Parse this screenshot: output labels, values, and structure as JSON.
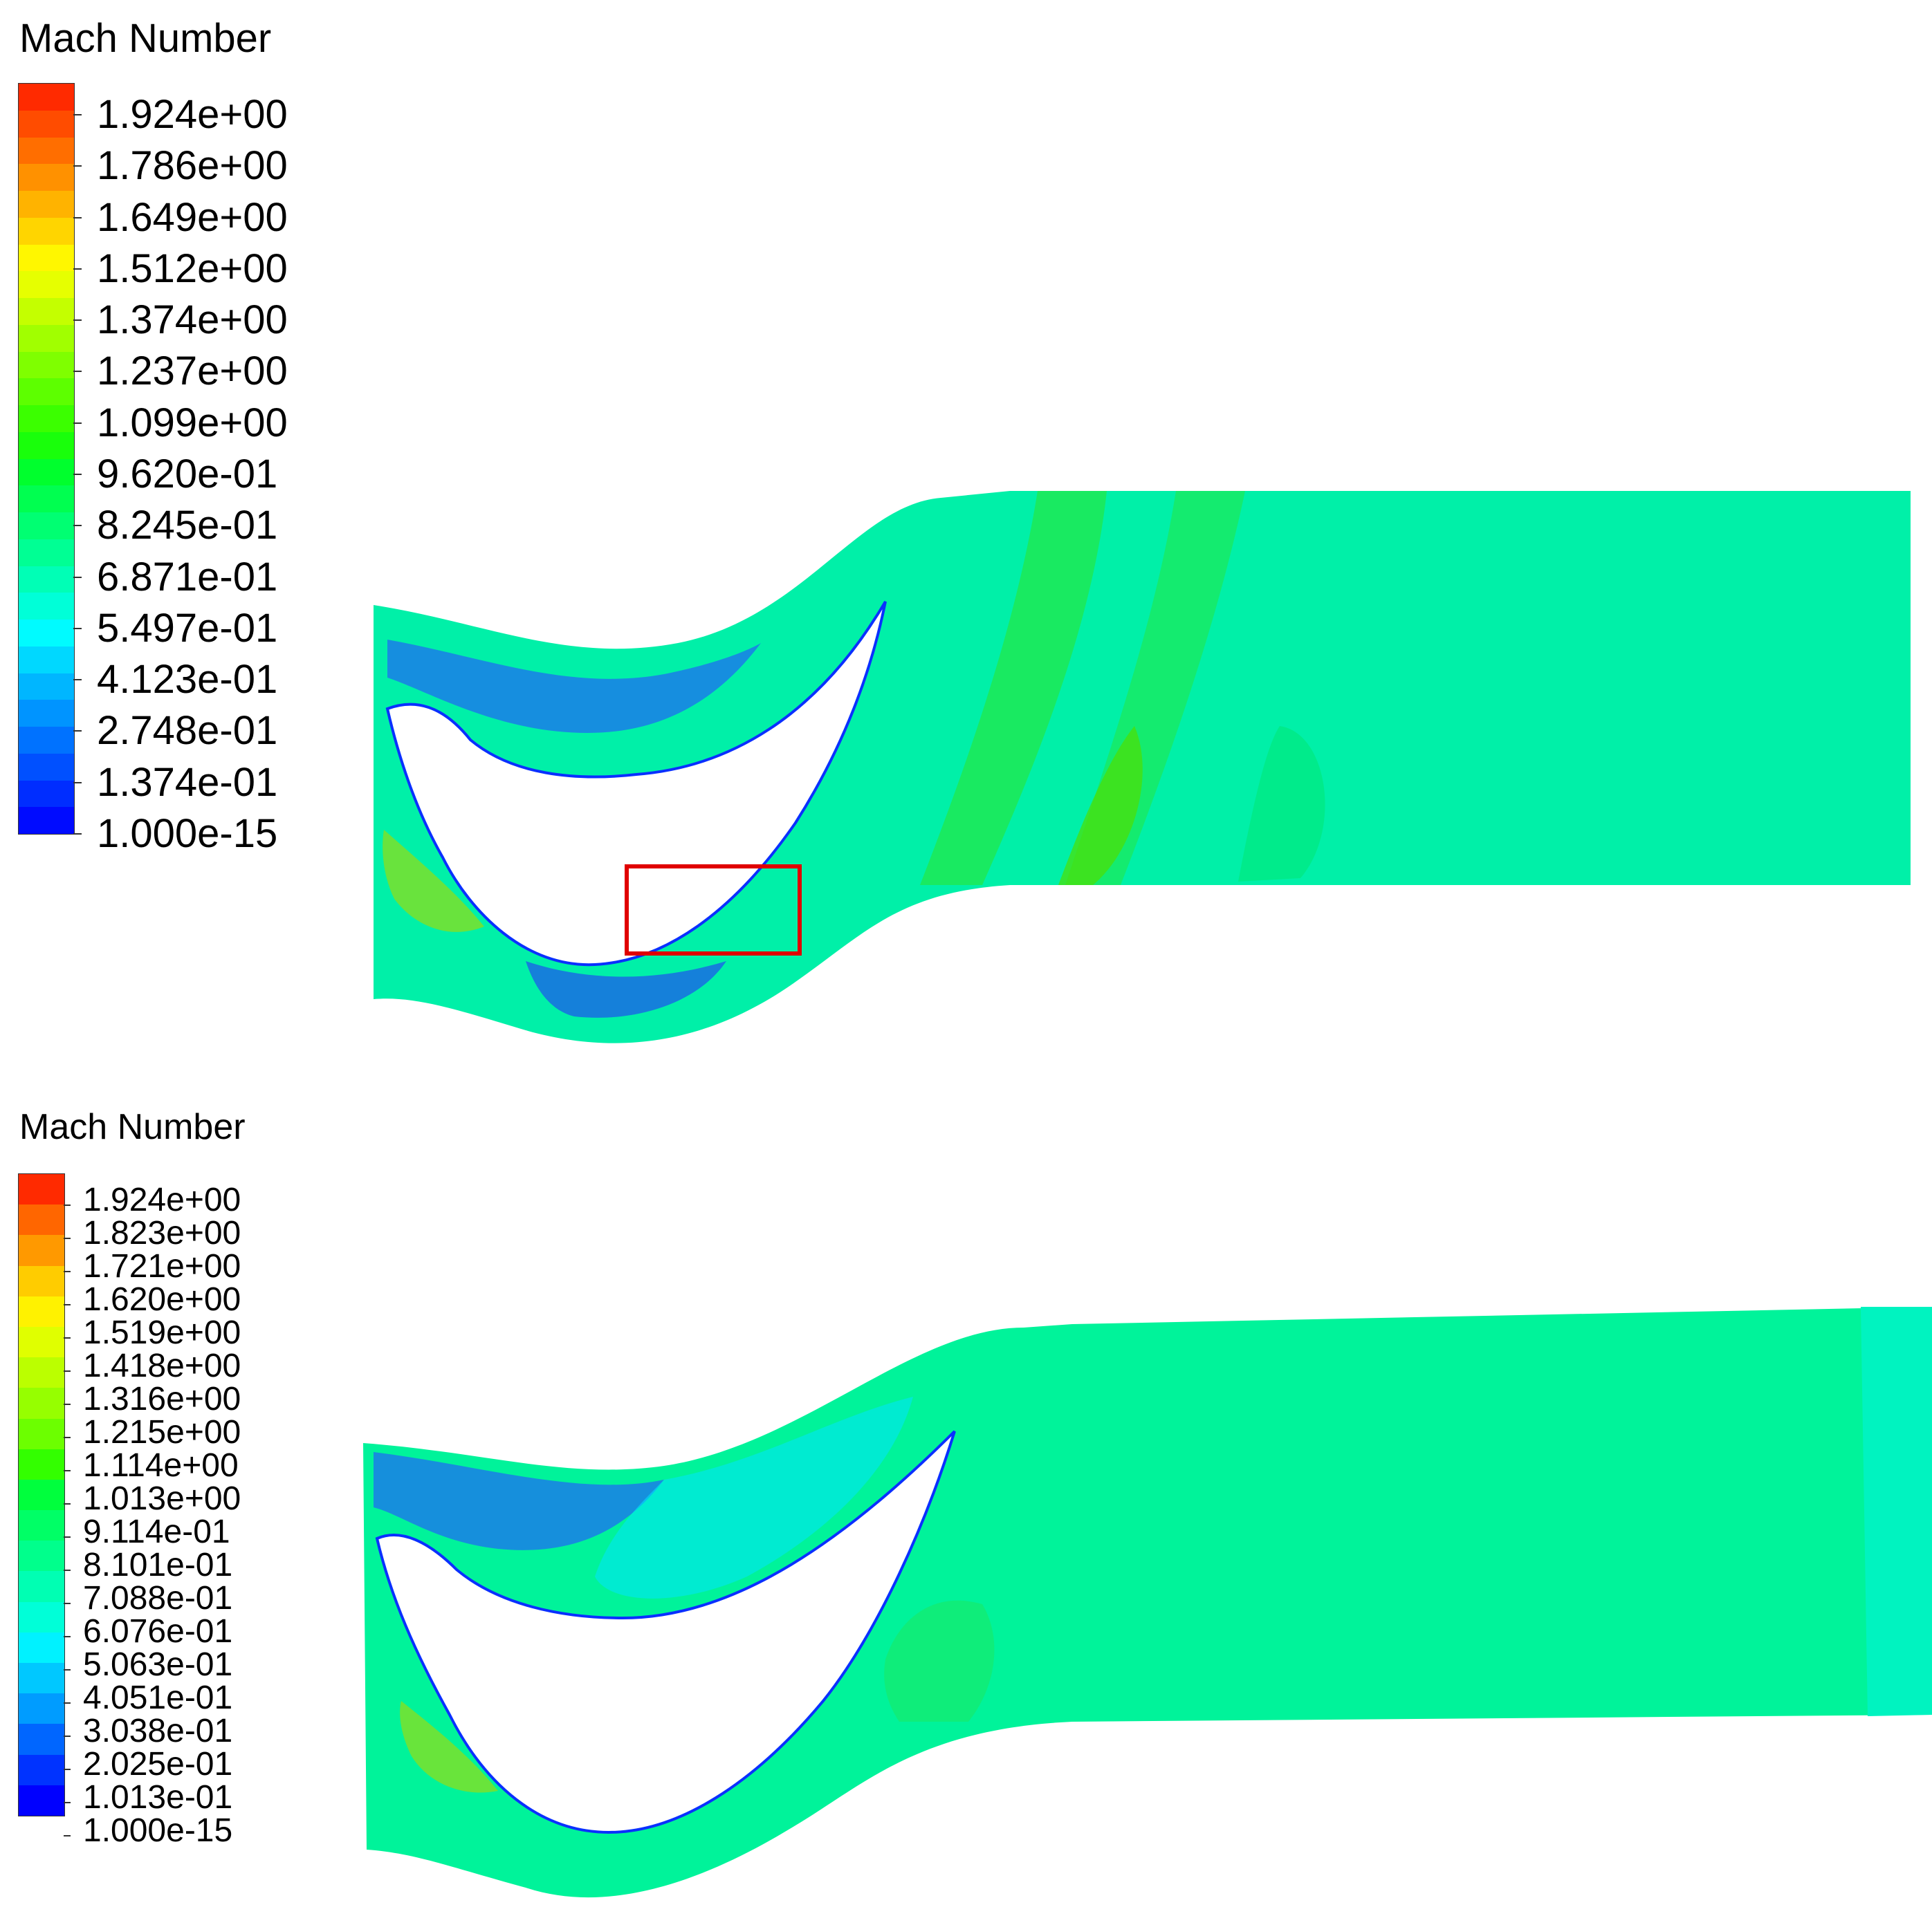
{
  "figure": {
    "panels": [
      {
        "legend_title": "Mach Number",
        "legend_labels": [
          "1.924e+00",
          "1.786e+00",
          "1.649e+00",
          "1.512e+00",
          "1.374e+00",
          "1.237e+00",
          "1.099e+00",
          "9.620e-01",
          "8.245e-01",
          "6.871e-01",
          "5.497e-01",
          "4.123e-01",
          "2.748e-01",
          "1.374e-01",
          "1.000e-15"
        ],
        "colormap": [
          "#ff2a00",
          "#ff4c00",
          "#ff6e00",
          "#ff9100",
          "#ffb300",
          "#ffd500",
          "#fff700",
          "#e6ff00",
          "#c4ff00",
          "#a1ff00",
          "#7fff00",
          "#5dff00",
          "#3bff00",
          "#19ff0b",
          "#00ff2d",
          "#00ff50",
          "#00ff72",
          "#00ff94",
          "#00ffb6",
          "#00ffd8",
          "#00fbff",
          "#00d8ff",
          "#00b6ff",
          "#0094ff",
          "#0072ff",
          "#0050ff",
          "#002dff",
          "#000bff"
        ],
        "highlight_box_color": "#e00000"
      },
      {
        "legend_title": "Mach Number",
        "legend_labels": [
          "1.924e+00",
          "1.823e+00",
          "1.721e+00",
          "1.620e+00",
          "1.519e+00",
          "1.418e+00",
          "1.316e+00",
          "1.215e+00",
          "1.114e+00",
          "1.013e+00",
          "9.114e-01",
          "8.101e-01",
          "7.088e-01",
          "6.076e-01",
          "5.063e-01",
          "4.051e-01",
          "3.038e-01",
          "2.025e-01",
          "1.013e-01",
          "1.000e-15"
        ],
        "colormap": [
          "#ff2a00",
          "#ff6600",
          "#ff9900",
          "#ffcc00",
          "#fff200",
          "#e0ff00",
          "#bbff00",
          "#96ff00",
          "#6cff00",
          "#33ff00",
          "#00ff3d",
          "#00ff66",
          "#00ff8c",
          "#00ffb3",
          "#00ffd8",
          "#00f2ff",
          "#00c8ff",
          "#009cff",
          "#0066ff",
          "#0033ff",
          "#0000ff"
        ]
      }
    ]
  }
}
